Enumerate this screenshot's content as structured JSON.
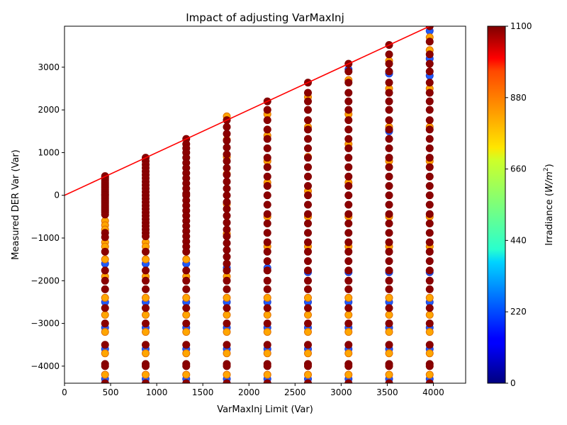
{
  "chart_data": {
    "type": "scatter",
    "title": "Impact of adjusting VarMaxInj",
    "xlabel": "VarMaxInj Limit (Var)",
    "ylabel": "Measured DER Var (Var)",
    "xlim": [
      0,
      4350
    ],
    "ylim": [
      -4400,
      3960
    ],
    "x_ticks": [
      "0",
      "500",
      "1000",
      "1500",
      "2000",
      "2500",
      "3000",
      "3500",
      "4000"
    ],
    "y_ticks": [
      "−4000",
      "−3000",
      "−2000",
      "−1000",
      "0",
      "1000",
      "2000",
      "3000"
    ],
    "x_tick_values": [
      0,
      500,
      1000,
      1500,
      2000,
      2500,
      3000,
      3500,
      4000
    ],
    "y_tick_values": [
      -4000,
      -3000,
      -2000,
      -1000,
      0,
      1000,
      2000,
      3000
    ],
    "colorbar": {
      "label": "Irradiance (W/m²)",
      "label_prefix": "Irradiance (",
      "label_unit_base": "W/m",
      "label_unit_exp": "2",
      "label_suffix": ")",
      "range": [
        0,
        1100
      ],
      "ticks": [
        "0",
        "220",
        "440",
        "660",
        "880",
        "1100"
      ],
      "tick_values": [
        0,
        220,
        440,
        660,
        880,
        1100
      ],
      "colormap": "jet"
    },
    "limit_line": {
      "color": "#ff0000",
      "x": [
        0,
        3960
      ],
      "y": [
        0,
        3960
      ]
    },
    "grid": false,
    "marker_edge_color": "#800000",
    "x_values": [
      440,
      880,
      1320,
      1760,
      2200,
      2640,
      3080,
      3520,
      3960
    ],
    "point_columns": [
      {
        "x": 440,
        "high_irradiance_y": [
          450,
          420,
          380,
          340,
          300,
          260,
          220,
          180,
          140,
          100,
          60,
          20,
          0,
          -40,
          -80,
          -120,
          -160,
          -200,
          -240,
          -280,
          -320,
          -360,
          -400,
          -450,
          -880,
          -980,
          -1320,
          -1760,
          -2000,
          -2200,
          -2640,
          -3000,
          -3500,
          -3950,
          -4000,
          -4400
        ],
        "mid_irradiance_y": [
          -600,
          -700,
          -800,
          -1100,
          -1200,
          -1500,
          -1900,
          -2400,
          -2800,
          -3200,
          -3700,
          -4200
        ],
        "low_irradiance_y": [
          -1600,
          -2500,
          -3100,
          -3600,
          -4300
        ]
      },
      {
        "x": 880,
        "high_irradiance_y": [
          880,
          800,
          720,
          640,
          560,
          480,
          400,
          320,
          240,
          160,
          80,
          0,
          -80,
          -160,
          -240,
          -320,
          -400,
          -480,
          -560,
          -640,
          -720,
          -800,
          -880,
          -960,
          -1320,
          -1760,
          -2000,
          -2200,
          -2640,
          -3000,
          -3500,
          -3950,
          -4000,
          -4400
        ],
        "mid_irradiance_y": [
          -1100,
          -1200,
          -1500,
          -1900,
          -2400,
          -2800,
          -3200,
          -3700,
          -4200
        ],
        "low_irradiance_y": [
          -1600,
          -2500,
          -3100,
          -3600,
          -4300
        ]
      },
      {
        "x": 1320,
        "high_irradiance_y": [
          1320,
          1200,
          1100,
          1000,
          880,
          760,
          640,
          520,
          400,
          280,
          160,
          40,
          0,
          -120,
          -240,
          -360,
          -480,
          -600,
          -720,
          -840,
          -960,
          -1080,
          -1200,
          -1320,
          -1760,
          -2000,
          -2200,
          -2640,
          -3000,
          -3500,
          -3950,
          -4000,
          -4400
        ],
        "mid_irradiance_y": [
          -1500,
          -1900,
          -2400,
          -2800,
          -3200,
          -3700,
          -4200
        ],
        "low_irradiance_y": [
          -1600,
          -2500,
          -3100,
          -3600,
          -4300
        ]
      },
      {
        "x": 1760,
        "high_irradiance_y": [
          1760,
          1600,
          1440,
          1280,
          1120,
          960,
          800,
          640,
          480,
          320,
          160,
          0,
          -160,
          -320,
          -480,
          -640,
          -800,
          -960,
          -1120,
          -1280,
          -1440,
          -1600,
          -1760,
          -2000,
          -2200,
          -2640,
          -3000,
          -3500,
          -3950,
          -4000,
          -4400
        ],
        "mid_irradiance_y": [
          1850,
          1300,
          900,
          500,
          -200,
          -900,
          -1900,
          -2400,
          -2800,
          -3200,
          -3700,
          -4200
        ],
        "low_irradiance_y": [
          -1700,
          -2500,
          -3100,
          -3600,
          -4300
        ]
      },
      {
        "x": 2200,
        "high_irradiance_y": [
          2200,
          2000,
          1760,
          1540,
          1320,
          1100,
          880,
          660,
          440,
          220,
          0,
          -220,
          -440,
          -660,
          -880,
          -1100,
          -1320,
          -1540,
          -1760,
          -2000,
          -2200,
          -2640,
          -3000,
          -3500,
          -3950,
          -4000,
          -4400
        ],
        "mid_irradiance_y": [
          1900,
          1400,
          800,
          300,
          -500,
          -1200,
          -2400,
          -2800,
          -3200,
          -3700,
          -4200
        ],
        "low_irradiance_y": [
          -1700,
          -2500,
          -3100,
          -3600,
          -4300
        ]
      },
      {
        "x": 2640,
        "high_irradiance_y": [
          2640,
          2400,
          2200,
          2000,
          1760,
          1540,
          1320,
          1100,
          880,
          660,
          440,
          220,
          0,
          -220,
          -440,
          -660,
          -880,
          -1100,
          -1320,
          -1540,
          -1760,
          -2000,
          -2200,
          -2640,
          -3000,
          -3500,
          -3950,
          -4000,
          -4400
        ],
        "mid_irradiance_y": [
          2300,
          1600,
          900,
          100,
          -500,
          -1200,
          -2400,
          -2800,
          -3200,
          -3700,
          -4200
        ],
        "low_irradiance_y": [
          -1800,
          -2500,
          -3100,
          -3600,
          -4300
        ]
      },
      {
        "x": 3080,
        "high_irradiance_y": [
          3080,
          2900,
          2640,
          2400,
          2200,
          2000,
          1760,
          1540,
          1320,
          1100,
          880,
          660,
          440,
          220,
          0,
          -220,
          -440,
          -660,
          -880,
          -1100,
          -1320,
          -1540,
          -1760,
          -2000,
          -2200,
          -2640,
          -3000,
          -3500,
          -3950,
          -4000,
          -4400
        ],
        "mid_irradiance_y": [
          2700,
          1900,
          1200,
          300,
          -500,
          -1200,
          -2400,
          -2800,
          -3200,
          -3700,
          -4200
        ],
        "low_irradiance_y": [
          2950,
          -1800,
          -2500,
          -3100,
          -3600,
          -4300
        ]
      },
      {
        "x": 3520,
        "high_irradiance_y": [
          3520,
          3300,
          3080,
          2900,
          2640,
          2400,
          2200,
          2000,
          1760,
          1540,
          1320,
          1100,
          880,
          660,
          440,
          220,
          0,
          -220,
          -440,
          -660,
          -880,
          -1100,
          -1320,
          -1540,
          -1760,
          -2000,
          -2200,
          -2640,
          -3000,
          -3500,
          -3950,
          -4000,
          -4400
        ],
        "mid_irradiance_y": [
          3150,
          2500,
          1600,
          800,
          -500,
          -1200,
          -2400,
          -2800,
          -3200,
          -3700,
          -4200
        ],
        "low_irradiance_y": [
          2850,
          1500,
          -1800,
          -2500,
          -3100,
          -3600,
          -4300
        ]
      },
      {
        "x": 3960,
        "high_irradiance_y": [
          3960,
          3600,
          3300,
          3080,
          2900,
          2640,
          2400,
          2200,
          2000,
          1760,
          1540,
          1320,
          1100,
          880,
          660,
          440,
          220,
          0,
          -220,
          -440,
          -660,
          -880,
          -1100,
          -1320,
          -1540,
          -1760,
          -2000,
          -2200,
          -2640,
          -3000,
          -3500,
          -3950,
          -4000,
          -4400
        ],
        "mid_irradiance_y": [
          3700,
          3400,
          2500,
          1600,
          800,
          -500,
          -1200,
          -2400,
          -2800,
          -3200,
          -3700,
          -4200
        ],
        "low_irradiance_y": [
          3850,
          3200,
          2800,
          -1800,
          -2500,
          -3100,
          -3600,
          -4300
        ]
      }
    ]
  }
}
